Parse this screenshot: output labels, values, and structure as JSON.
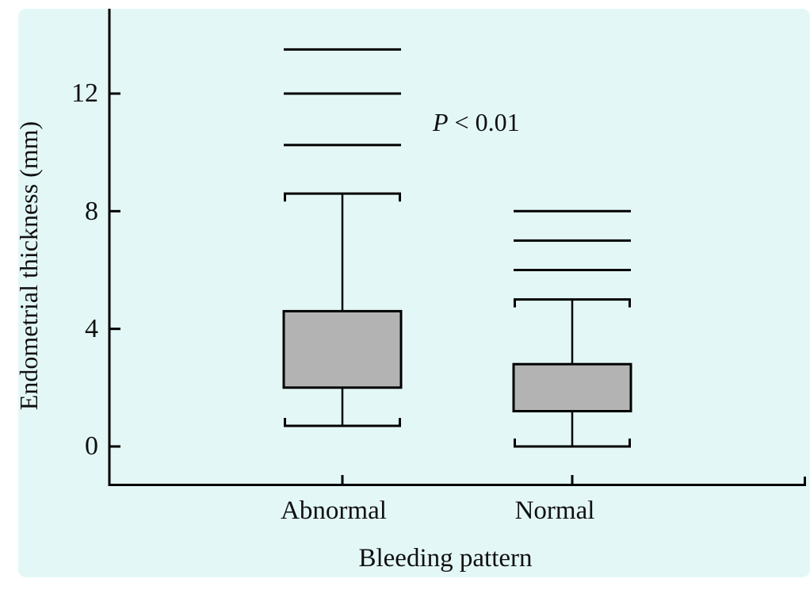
{
  "chart_data": {
    "type": "boxplot",
    "title": "",
    "xlabel": "Bleeding pattern",
    "ylabel": "Endometrial thickness (mm)",
    "categories": [
      "Abnormal",
      "Normal"
    ],
    "yticks": [
      "12",
      "8",
      "4",
      "0"
    ],
    "ylim": [
      0,
      15
    ],
    "grid": false,
    "legend": false,
    "annotation": {
      "symbol": "P",
      "comparison": " < 0.01"
    },
    "series": [
      {
        "name": "Abnormal",
        "whisker_low": 0.7,
        "q1": 2.0,
        "q3": 4.6,
        "whisker_high": 8.6,
        "outlier_lines": [
          13.5,
          12.0,
          10.25
        ]
      },
      {
        "name": "Normal",
        "whisker_low": 0.0,
        "q1": 1.2,
        "q3": 2.8,
        "whisker_high": 5.0,
        "outlier_lines": [
          8.0,
          7.0,
          6.0
        ]
      }
    ],
    "colors": {
      "plot_background": "#e3f8f6",
      "box_fill": "#b3b3b3",
      "line": "#000000",
      "page_background": "#ffffff"
    }
  }
}
